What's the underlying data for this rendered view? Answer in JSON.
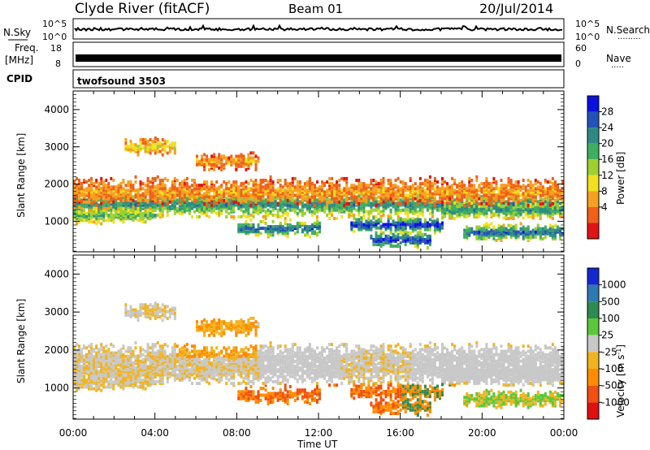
{
  "header": {
    "station": "Clyde River (fitACF)",
    "beam": "Beam 01",
    "date": "20/Jul/2014"
  },
  "strips": {
    "nsky_label": "N.Sky",
    "nsearch_label": "N.Search",
    "nsky_ticks": [
      "10^5",
      "10^0"
    ],
    "nsearch_ticks": [
      "10^5",
      "10^0"
    ],
    "freq_label": "Freq.",
    "freq_unit": "[MHz]",
    "freq_ticks": [
      "18",
      "8"
    ],
    "nave_label": "Nave",
    "nave_ticks": [
      "60",
      "0"
    ],
    "cpid_label": "CPID",
    "cpid_value": "twofsound 3503"
  },
  "chart_data": [
    {
      "type": "heatmap",
      "name": "power",
      "ylabel": "Slant Range [km]",
      "xlabel": "",
      "x_ticks": [
        "00:00",
        "04:00",
        "08:00",
        "12:00",
        "16:00",
        "20:00",
        "00:00"
      ],
      "xlim_hours": [
        0,
        24
      ],
      "y_ticks": [
        1000,
        2000,
        3000,
        4000
      ],
      "ylim": [
        180,
        4500
      ],
      "colorbar_label": "Power [dB]",
      "colorbar_ticks": [
        "28",
        "24",
        "20",
        "16",
        "12",
        "8",
        "4"
      ],
      "colorbar_colors": [
        "#0a10e0",
        "#2453b8",
        "#2e8a84",
        "#3fae60",
        "#9fd030",
        "#f0e020",
        "#f5a020",
        "#f06018",
        "#e01414"
      ],
      "bands": [
        {
          "range": 1450,
          "from": 0,
          "to": 24,
          "level": 6
        },
        {
          "range": 1150,
          "from": 0,
          "to": 4,
          "level": 5
        },
        {
          "range": 800,
          "from": 8,
          "to": 12,
          "level": 7
        },
        {
          "range": 900,
          "from": 13.5,
          "to": 18,
          "level": 8
        },
        {
          "range": 500,
          "from": 14.5,
          "to": 17.5,
          "level": 8
        },
        {
          "range": 1300,
          "from": 18,
          "to": 24,
          "level": 6
        },
        {
          "range": 700,
          "from": 19,
          "to": 24,
          "level": 7
        },
        {
          "range": 3000,
          "from": 2.5,
          "to": 5,
          "level": 3
        },
        {
          "range": 2600,
          "from": 6,
          "to": 9,
          "level": 2
        },
        {
          "range": 1800,
          "from": 0,
          "to": 24,
          "level": 2
        }
      ]
    },
    {
      "type": "heatmap",
      "name": "velocity",
      "ylabel": "Slant Range [km]",
      "xlabel": "Time UT",
      "x_ticks": [
        "00:00",
        "04:00",
        "08:00",
        "12:00",
        "16:00",
        "20:00",
        "00:00"
      ],
      "xlim_hours": [
        0,
        24
      ],
      "y_ticks": [
        1000,
        2000,
        3000,
        4000
      ],
      "ylim": [
        180,
        4500
      ],
      "colorbar_label": "Velocity [m s",
      "colorbar_unit_sup": "-1",
      "colorbar_unit_end": "]",
      "colorbar_ticks": [
        "1000",
        "500",
        "100",
        "25",
        "-25",
        "-100",
        "-500",
        "-1000"
      ],
      "colorbar_colors": [
        "#1428d0",
        "#2e7ab0",
        "#2e8a50",
        "#5ac83a",
        "#c8c8c8",
        "#f0b420",
        "#ff8c00",
        "#f05010",
        "#e01010"
      ]
    }
  ]
}
